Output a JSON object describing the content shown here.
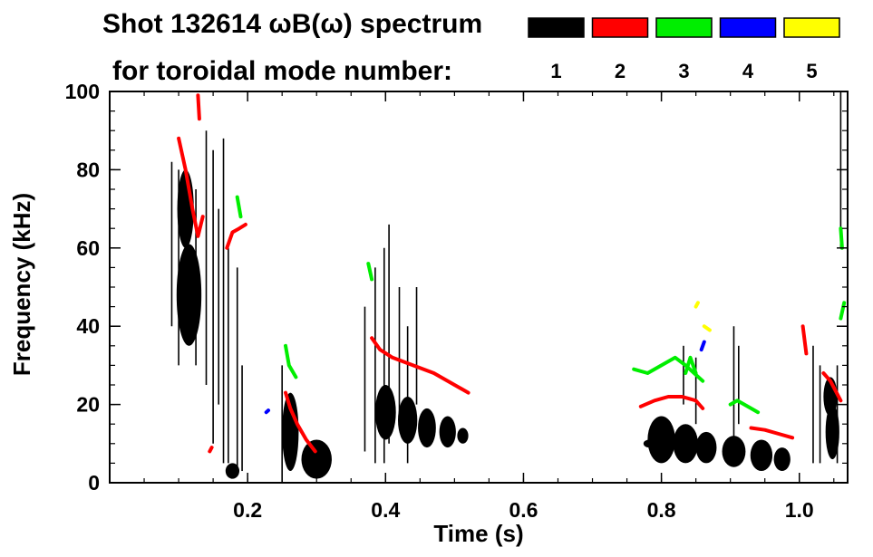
{
  "chart_data": {
    "type": "spectrogram",
    "title_line1": "Shot 132614 ωB(ω) spectrum",
    "title_line2": "for toroidal mode number:",
    "xlabel": "Time (s)",
    "ylabel": "Frequency (kHz)",
    "xlim": [
      0.0,
      1.07
    ],
    "ylim": [
      0,
      100
    ],
    "x_ticks": [
      {
        "value": 0.2,
        "label": "0.2"
      },
      {
        "value": 0.4,
        "label": "0.4"
      },
      {
        "value": 0.6,
        "label": "0.6"
      },
      {
        "value": 0.8,
        "label": "0.8"
      },
      {
        "value": 1.0,
        "label": "1.0"
      }
    ],
    "y_ticks": [
      {
        "value": 0,
        "label": "0"
      },
      {
        "value": 20,
        "label": "20"
      },
      {
        "value": 40,
        "label": "40"
      },
      {
        "value": 60,
        "label": "60"
      },
      {
        "value": 80,
        "label": "80"
      },
      {
        "value": 100,
        "label": "100"
      }
    ],
    "legend": [
      {
        "mode": "1",
        "color": "#000000"
      },
      {
        "mode": "2",
        "color": "#ff0000"
      },
      {
        "mode": "3",
        "color": "#00ee00"
      },
      {
        "mode": "4",
        "color": "#0000ff"
      },
      {
        "mode": "5",
        "color": "#ffff00"
      }
    ],
    "features": [
      {
        "mode": 1,
        "kind": "blob",
        "t": 0.115,
        "f": 48,
        "dt": 0.018,
        "df": 13
      },
      {
        "mode": 1,
        "kind": "blob",
        "t": 0.11,
        "f": 70,
        "dt": 0.012,
        "df": 10
      },
      {
        "mode": 1,
        "kind": "blob",
        "t": 0.262,
        "f": 13,
        "dt": 0.012,
        "df": 10
      },
      {
        "mode": 1,
        "kind": "blob",
        "t": 0.3,
        "f": 6,
        "dt": 0.022,
        "df": 5
      },
      {
        "mode": 1,
        "kind": "blob",
        "t": 0.178,
        "f": 3,
        "dt": 0.01,
        "df": 2
      },
      {
        "mode": 1,
        "kind": "blob",
        "t": 0.4,
        "f": 18,
        "dt": 0.015,
        "df": 7
      },
      {
        "mode": 1,
        "kind": "blob",
        "t": 0.432,
        "f": 16,
        "dt": 0.014,
        "df": 6
      },
      {
        "mode": 1,
        "kind": "blob",
        "t": 0.46,
        "f": 14,
        "dt": 0.013,
        "df": 5
      },
      {
        "mode": 1,
        "kind": "blob",
        "t": 0.49,
        "f": 13,
        "dt": 0.012,
        "df": 4
      },
      {
        "mode": 1,
        "kind": "blob",
        "t": 0.512,
        "f": 12,
        "dt": 0.008,
        "df": 2
      },
      {
        "mode": 1,
        "kind": "blob",
        "t": 0.8,
        "f": 11,
        "dt": 0.02,
        "df": 6
      },
      {
        "mode": 1,
        "kind": "blob",
        "t": 0.835,
        "f": 10,
        "dt": 0.018,
        "df": 5
      },
      {
        "mode": 1,
        "kind": "blob",
        "t": 0.865,
        "f": 9,
        "dt": 0.015,
        "df": 4
      },
      {
        "mode": 1,
        "kind": "blob",
        "t": 0.905,
        "f": 8,
        "dt": 0.017,
        "df": 4
      },
      {
        "mode": 1,
        "kind": "blob",
        "t": 0.945,
        "f": 7,
        "dt": 0.016,
        "df": 4
      },
      {
        "mode": 1,
        "kind": "blob",
        "t": 0.975,
        "f": 6,
        "dt": 0.012,
        "df": 3
      },
      {
        "mode": 1,
        "kind": "blob",
        "t": 1.048,
        "f": 13,
        "dt": 0.01,
        "df": 7
      },
      {
        "mode": 1,
        "kind": "blob",
        "t": 1.045,
        "f": 22,
        "dt": 0.01,
        "df": 5
      },
      {
        "mode": 1,
        "kind": "blob",
        "t": 0.782,
        "f": 10,
        "dt": 0.008,
        "df": 1
      },
      {
        "mode": 1,
        "kind": "vline",
        "t": 0.09,
        "f1": 40,
        "f2": 82
      },
      {
        "mode": 1,
        "kind": "vline",
        "t": 0.1,
        "f1": 30,
        "f2": 80
      },
      {
        "mode": 1,
        "kind": "vline",
        "t": 0.125,
        "f1": 30,
        "f2": 75
      },
      {
        "mode": 1,
        "kind": "vline",
        "t": 0.14,
        "f1": 25,
        "f2": 90
      },
      {
        "mode": 1,
        "kind": "vline",
        "t": 0.15,
        "f1": 10,
        "f2": 85
      },
      {
        "mode": 1,
        "kind": "vline",
        "t": 0.158,
        "f1": 20,
        "f2": 70
      },
      {
        "mode": 1,
        "kind": "vline",
        "t": 0.165,
        "f1": 5,
        "f2": 88
      },
      {
        "mode": 1,
        "kind": "vline",
        "t": 0.172,
        "f1": 5,
        "f2": 60
      },
      {
        "mode": 1,
        "kind": "vline",
        "t": 0.185,
        "f1": 2,
        "f2": 55
      },
      {
        "mode": 1,
        "kind": "vline",
        "t": 0.192,
        "f1": 3,
        "f2": 30
      },
      {
        "mode": 1,
        "kind": "vline",
        "t": 0.25,
        "f1": 0,
        "f2": 30
      },
      {
        "mode": 1,
        "kind": "vline",
        "t": 0.37,
        "f1": 8,
        "f2": 45
      },
      {
        "mode": 1,
        "kind": "vline",
        "t": 0.385,
        "f1": 5,
        "f2": 55
      },
      {
        "mode": 1,
        "kind": "vline",
        "t": 0.398,
        "f1": 5,
        "f2": 60
      },
      {
        "mode": 1,
        "kind": "vline",
        "t": 0.405,
        "f1": 10,
        "f2": 66
      },
      {
        "mode": 1,
        "kind": "vline",
        "t": 0.42,
        "f1": 15,
        "f2": 50
      },
      {
        "mode": 1,
        "kind": "vline",
        "t": 0.432,
        "f1": 5,
        "f2": 40
      },
      {
        "mode": 1,
        "kind": "vline",
        "t": 0.445,
        "f1": 20,
        "f2": 50
      },
      {
        "mode": 1,
        "kind": "vline",
        "t": 0.832,
        "f1": 20,
        "f2": 35
      },
      {
        "mode": 1,
        "kind": "vline",
        "t": 0.85,
        "f1": 15,
        "f2": 32
      },
      {
        "mode": 1,
        "kind": "vline",
        "t": 0.905,
        "f1": 10,
        "f2": 40
      },
      {
        "mode": 1,
        "kind": "vline",
        "t": 0.912,
        "f1": 15,
        "f2": 35
      },
      {
        "mode": 1,
        "kind": "vline",
        "t": 1.02,
        "f1": 5,
        "f2": 35
      },
      {
        "mode": 1,
        "kind": "vline",
        "t": 1.03,
        "f1": 5,
        "f2": 30
      },
      {
        "mode": 1,
        "kind": "vline",
        "t": 1.055,
        "f1": 5,
        "f2": 30
      },
      {
        "mode": 1,
        "kind": "vline",
        "t": 1.06,
        "f1": 60,
        "f2": 100
      },
      {
        "mode": 2,
        "kind": "curve",
        "t": [
          0.1,
          0.11,
          0.12,
          0.128,
          0.135
        ],
        "f": [
          88,
          80,
          70,
          63,
          68
        ]
      },
      {
        "mode": 2,
        "kind": "curve",
        "t": [
          0.17,
          0.178,
          0.188,
          0.197
        ],
        "f": [
          60,
          64,
          65,
          66
        ]
      },
      {
        "mode": 2,
        "kind": "curve",
        "t": [
          0.255,
          0.262,
          0.272,
          0.285,
          0.298
        ],
        "f": [
          23,
          19,
          15,
          11,
          8
        ]
      },
      {
        "mode": 2,
        "kind": "curve",
        "t": [
          0.38,
          0.392,
          0.41,
          0.44,
          0.47,
          0.5,
          0.52
        ],
        "f": [
          37,
          34,
          32,
          30,
          28,
          25,
          23
        ]
      },
      {
        "mode": 2,
        "kind": "curve",
        "t": [
          0.77,
          0.79,
          0.81,
          0.83,
          0.85,
          0.86
        ],
        "f": [
          19.5,
          21,
          22,
          22,
          21,
          19
        ]
      },
      {
        "mode": 2,
        "kind": "curve",
        "t": [
          0.93,
          0.95,
          0.97,
          0.99
        ],
        "f": [
          14,
          13.5,
          12.5,
          11.5
        ]
      },
      {
        "mode": 2,
        "kind": "curve",
        "t": [
          1.035,
          1.045,
          1.06
        ],
        "f": [
          28,
          26,
          21
        ]
      },
      {
        "mode": 2,
        "kind": "curve",
        "t": [
          1.005,
          1.01
        ],
        "f": [
          40,
          33
        ]
      },
      {
        "mode": 2,
        "kind": "curve",
        "t": [
          0.128,
          0.13
        ],
        "f": [
          99,
          93
        ]
      },
      {
        "mode": 2,
        "kind": "curve",
        "t": [
          0.145,
          0.148
        ],
        "f": [
          8,
          9
        ]
      },
      {
        "mode": 3,
        "kind": "curve",
        "t": [
          0.255,
          0.26,
          0.27
        ],
        "f": [
          35,
          30,
          27
        ]
      },
      {
        "mode": 3,
        "kind": "curve",
        "t": [
          0.185,
          0.19
        ],
        "f": [
          73,
          68
        ]
      },
      {
        "mode": 3,
        "kind": "curve",
        "t": [
          0.375,
          0.38
        ],
        "f": [
          56,
          52
        ]
      },
      {
        "mode": 3,
        "kind": "curve",
        "t": [
          0.76,
          0.78,
          0.8,
          0.82,
          0.835,
          0.86
        ],
        "f": [
          29,
          28,
          30,
          32,
          30,
          26
        ]
      },
      {
        "mode": 3,
        "kind": "curve",
        "t": [
          0.835,
          0.842,
          0.85
        ],
        "f": [
          28,
          32,
          28
        ]
      },
      {
        "mode": 3,
        "kind": "curve",
        "t": [
          0.9,
          0.91,
          0.93,
          0.94
        ],
        "f": [
          20,
          21,
          19,
          18
        ]
      },
      {
        "mode": 3,
        "kind": "curve",
        "t": [
          1.06,
          1.065
        ],
        "f": [
          42,
          46
        ]
      },
      {
        "mode": 3,
        "kind": "curve",
        "t": [
          1.06,
          1.062
        ],
        "f": [
          65,
          60
        ]
      },
      {
        "mode": 4,
        "kind": "curve",
        "t": [
          0.858,
          0.862
        ],
        "f": [
          34,
          36
        ]
      },
      {
        "mode": 4,
        "kind": "curve",
        "t": [
          0.227,
          0.23
        ],
        "f": [
          18,
          18.5
        ]
      },
      {
        "mode": 5,
        "kind": "curve",
        "t": [
          0.862,
          0.87
        ],
        "f": [
          40,
          39
        ]
      },
      {
        "mode": 5,
        "kind": "curve",
        "t": [
          0.85,
          0.853
        ],
        "f": [
          45,
          46
        ]
      }
    ]
  }
}
